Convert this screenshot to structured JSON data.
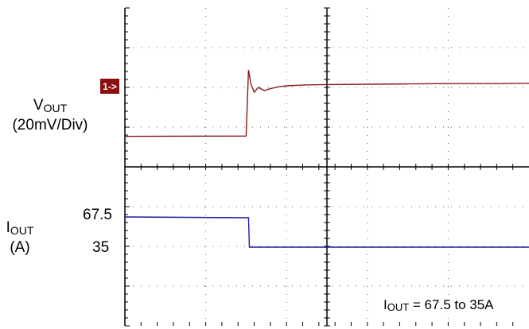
{
  "chart_data": {
    "type": "line",
    "grid": true,
    "panels": [
      {
        "name": "voltage",
        "ylabel_main": "V",
        "ylabel_sub": "OUT",
        "ylabel_unit": "(20mV/Div)",
        "channel_marker": "1->",
        "color": "#8b1a1a",
        "ylim": [
          0,
          5
        ],
        "x": [
          0,
          3.0,
          3.0,
          3.06,
          3.12,
          3.2,
          3.3,
          3.45,
          3.6,
          3.8,
          4.0,
          4.5,
          5,
          6,
          7,
          8,
          9,
          10
        ],
        "y": [
          0.96,
          0.97,
          0.97,
          3.05,
          2.6,
          2.35,
          2.5,
          2.4,
          2.46,
          2.52,
          2.55,
          2.58,
          2.59,
          2.6,
          2.61,
          2.62,
          2.62,
          2.63
        ]
      },
      {
        "name": "current",
        "ylabel_main": "I",
        "ylabel_sub": "OUT",
        "ylabel_unit": "(A)",
        "tick_labels": [
          "67.5",
          "35"
        ],
        "color": "#1c1ca0",
        "ylim": [
          0,
          4
        ],
        "x": [
          0,
          3.06,
          3.08,
          10
        ],
        "y": [
          2.74,
          2.72,
          1.98,
          1.98
        ]
      }
    ],
    "xlim": [
      0,
      10
    ],
    "annotation": {
      "main": "I",
      "sub": "OUT",
      "rest": " = 67.5 to 35A"
    }
  }
}
